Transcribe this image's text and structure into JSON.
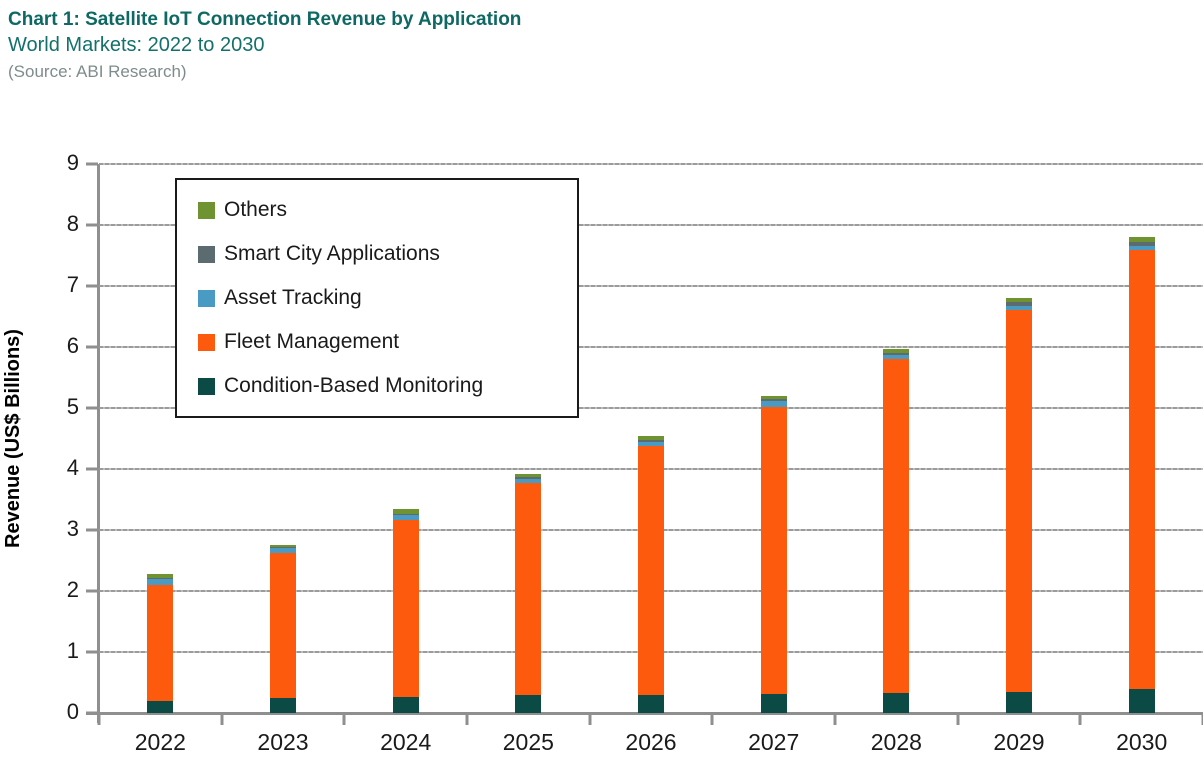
{
  "header": {
    "title": "Chart 1: Satellite IoT Connection Revenue by Application",
    "subtitle": "World Markets: 2022 to 2030",
    "source": "(Source: ABI Research)"
  },
  "colors": {
    "title_teal": "#0e6863",
    "subtitle_teal": "#13706b",
    "source_gray": "#7e8c8c",
    "axis_gray": "#8f8f8f",
    "gridline_gray": "#a3a3a3"
  },
  "chart_data": {
    "type": "bar",
    "stacked": true,
    "title": "Satellite IoT Connection Revenue by Application, World Markets: 2022 to 2030",
    "xlabel": "",
    "ylabel": "Revenue (US$ Billions)",
    "ylim": [
      0,
      9
    ],
    "yticks": [
      0,
      1,
      2,
      3,
      4,
      5,
      6,
      7,
      8,
      9
    ],
    "grid": true,
    "legend_position": "top-left",
    "categories": [
      "2022",
      "2023",
      "2024",
      "2025",
      "2026",
      "2027",
      "2028",
      "2029",
      "2030"
    ],
    "series": [
      {
        "name": "Condition-Based Monitoring",
        "color": "#0b4a45",
        "values": [
          0.2,
          0.24,
          0.27,
          0.29,
          0.3,
          0.31,
          0.33,
          0.35,
          0.4
        ]
      },
      {
        "name": "Fleet Management",
        "color": "#fe5a0e",
        "values": [
          1.9,
          2.39,
          2.89,
          3.48,
          4.07,
          4.71,
          5.47,
          6.25,
          7.19
        ]
      },
      {
        "name": "Asset Tracking",
        "color": "#4a9bc3",
        "values": [
          0.09,
          0.07,
          0.09,
          0.07,
          0.08,
          0.09,
          0.07,
          0.08,
          0.07
        ]
      },
      {
        "name": "Smart City Applications",
        "color": "#5c6b70",
        "values": [
          0.03,
          0.02,
          0.02,
          0.03,
          0.03,
          0.03,
          0.03,
          0.05,
          0.06
        ]
      },
      {
        "name": "Others",
        "color": "#6f9330",
        "values": [
          0.06,
          0.04,
          0.07,
          0.05,
          0.06,
          0.05,
          0.06,
          0.08,
          0.08
        ]
      }
    ],
    "legend_order": [
      "Others",
      "Smart City Applications",
      "Asset Tracking",
      "Fleet Management",
      "Condition-Based Monitoring"
    ],
    "totals": [
      2.28,
      2.76,
      3.34,
      3.92,
      4.54,
      5.19,
      5.96,
      6.81,
      7.8
    ]
  }
}
